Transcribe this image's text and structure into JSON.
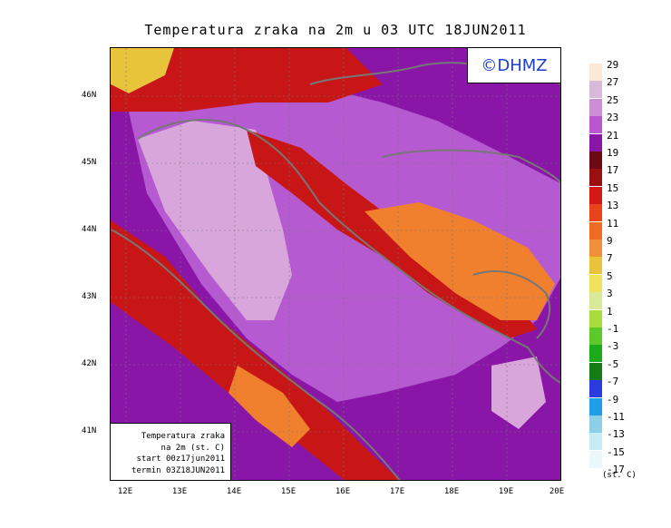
{
  "title": "Temperatura zraka na 2m u 03 UTC 18JUN2011",
  "watermark": "©DHMZ",
  "infobox": {
    "line1": "Temperatura zraka",
    "line2": "na 2m (st. C)",
    "line3": "start 00z17jun2011",
    "line4": "termin 03Z18JUN2011"
  },
  "lat_labels": [
    "46N",
    "45N",
    "44N",
    "43N",
    "42N",
    "41N"
  ],
  "lon_labels": [
    "12E",
    "13E",
    "14E",
    "15E",
    "16E",
    "17E",
    "18E",
    "19E",
    "20E"
  ],
  "legend": {
    "unit": "(st. C)",
    "labels": [
      "29",
      "27",
      "25",
      "23",
      "21",
      "19",
      "17",
      "15",
      "13",
      "11",
      "9",
      "7",
      "5",
      "3",
      "1",
      "-1",
      "-3",
      "-5",
      "-7",
      "-9",
      "-11",
      "-13",
      "-15",
      "-17"
    ],
    "colors": [
      "#fbe9d8",
      "#d9b9d9",
      "#cc8fd6",
      "#b956d0",
      "#8a16a8",
      "#6b0a14",
      "#9a0f0f",
      "#d41818",
      "#e8431a",
      "#f06a22",
      "#f0903a",
      "#e8c43a",
      "#f0e25a",
      "#d8ea9a",
      "#a8dc3c",
      "#5cc82a",
      "#1aaa1a",
      "#147e14",
      "#2a3ce0",
      "#1e9ee6",
      "#8ecfe8",
      "#c8ecf4",
      "#eaf8fc"
    ]
  },
  "map_colors": {
    "sea_warm": "#d9a6dc",
    "sea": "#b65ad2",
    "land_cool": "#8a16a8",
    "land_mid": "#6b0a14",
    "land_warm": "#c81616",
    "land_hot": "#f0802e",
    "border": "#777777"
  }
}
